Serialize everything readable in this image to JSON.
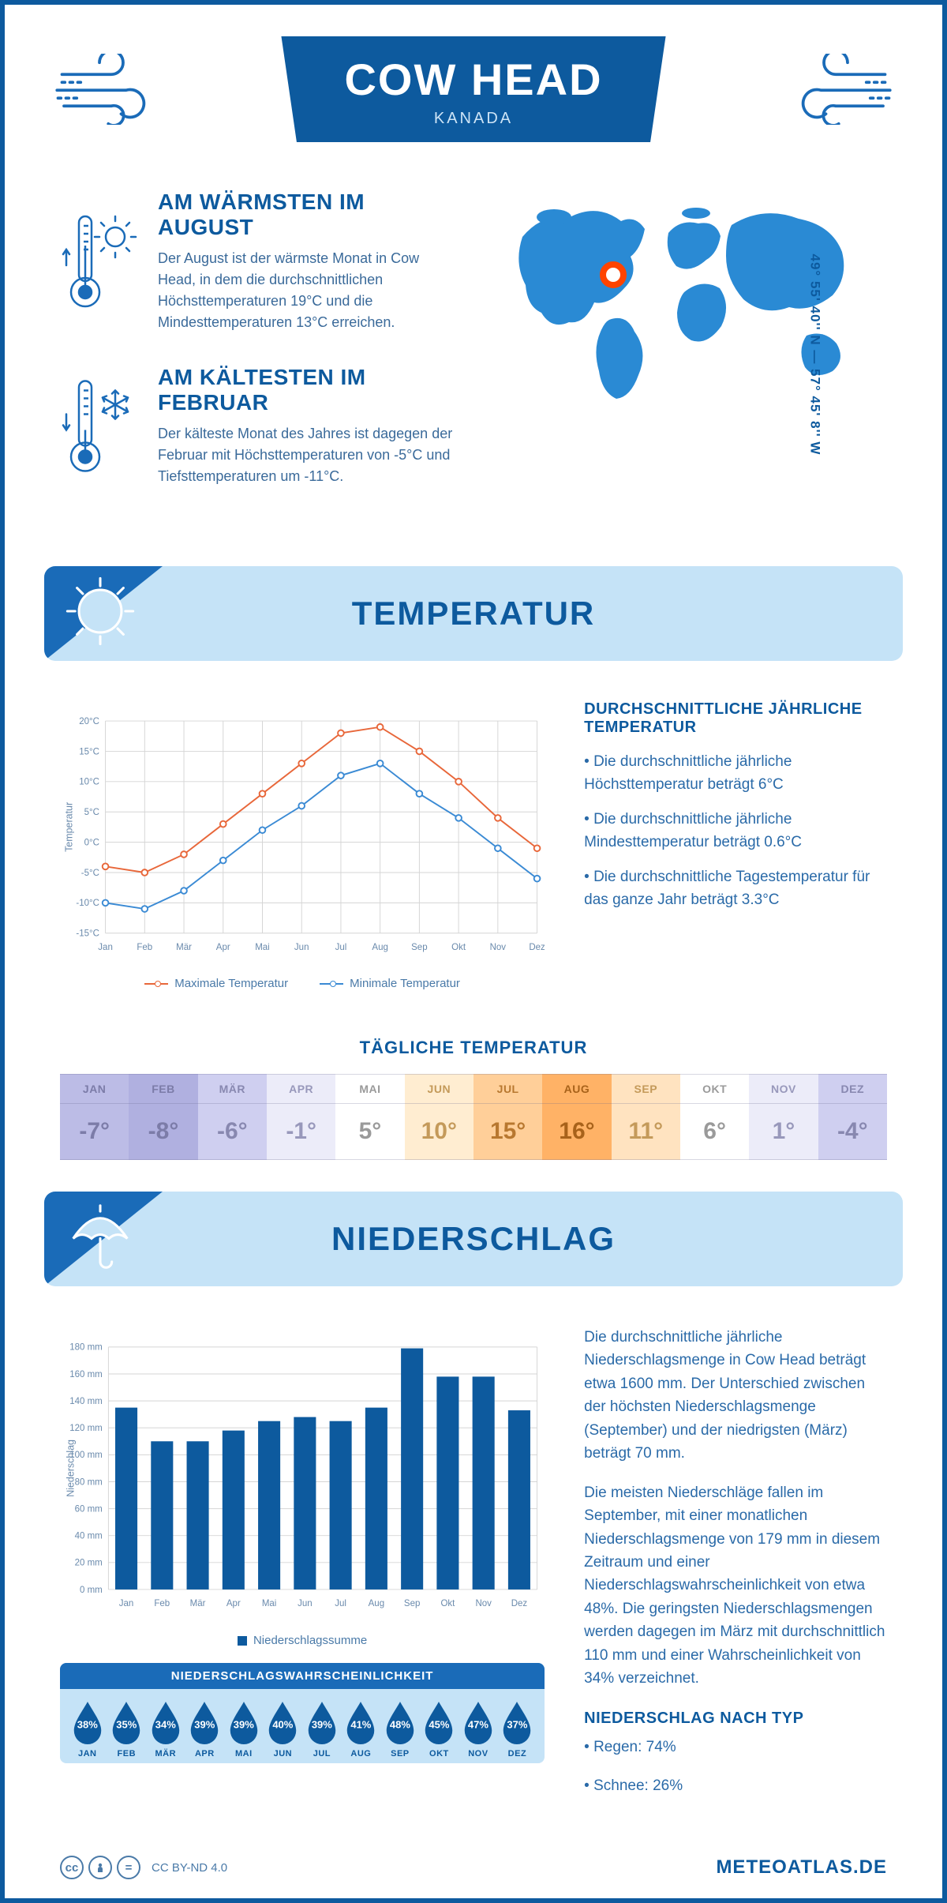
{
  "header": {
    "title": "COW HEAD",
    "subtitle": "KANADA"
  },
  "coords": "49° 55' 40'' N — 57° 45' 8'' W",
  "facts": {
    "warm": {
      "title": "AM WÄRMSTEN IM AUGUST",
      "text": "Der August ist der wärmste Monat in Cow Head, in dem die durchschnittlichen Höchsttemperaturen 19°C und die Mindesttemperaturen 13°C erreichen."
    },
    "cold": {
      "title": "AM KÄLTESTEN IM FEBRUAR",
      "text": "Der kälteste Monat des Jahres ist dagegen der Februar mit Höchsttemperaturen von -5°C und Tiefsttemperaturen um -11°C."
    }
  },
  "sections": {
    "temperature": "TEMPERATUR",
    "precipitation": "NIEDERSCHLAG"
  },
  "temp_chart": {
    "type": "line",
    "months": [
      "Jan",
      "Feb",
      "Mär",
      "Apr",
      "Mai",
      "Jun",
      "Jul",
      "Aug",
      "Sep",
      "Okt",
      "Nov",
      "Dez"
    ],
    "max_series": {
      "label": "Maximale Temperatur",
      "color": "#e8673a",
      "values": [
        -4,
        -5,
        -2,
        3,
        8,
        13,
        18,
        19,
        15,
        10,
        4,
        -1
      ]
    },
    "min_series": {
      "label": "Minimale Temperatur",
      "color": "#3a8ad4",
      "values": [
        -10,
        -11,
        -8,
        -3,
        2,
        6,
        11,
        13,
        8,
        4,
        -1,
        -6
      ]
    },
    "ylim": [
      -15,
      20
    ],
    "ytick_step": 5,
    "y_unit": "°C",
    "y_axis_label": "Temperatur",
    "grid_color": "#d5d5d5",
    "background": "#ffffff",
    "marker": "circle-open",
    "line_width": 2
  },
  "temp_facts": {
    "heading": "DURCHSCHNITTLICHE JÄHRLICHE TEMPERATUR",
    "bullets": [
      "• Die durchschnittliche jährliche Höchsttemperatur beträgt 6°C",
      "• Die durchschnittliche jährliche Mindesttemperatur beträgt 0.6°C",
      "• Die durchschnittliche Tagestemperatur für das ganze Jahr beträgt 3.3°C"
    ]
  },
  "daily_temp": {
    "title": "TÄGLICHE TEMPERATUR",
    "months": [
      "JAN",
      "FEB",
      "MÄR",
      "APR",
      "MAI",
      "JUN",
      "JUL",
      "AUG",
      "SEP",
      "OKT",
      "NOV",
      "DEZ"
    ],
    "values": [
      "-7°",
      "-8°",
      "-6°",
      "-1°",
      "5°",
      "10°",
      "15°",
      "16°",
      "11°",
      "6°",
      "1°",
      "-4°"
    ],
    "cell_colors": [
      "#bcbce6",
      "#b0b0e0",
      "#cfcff0",
      "#ececf9",
      "#ffffff",
      "#ffedd1",
      "#ffcf99",
      "#ffb266",
      "#ffe3c0",
      "#ffffff",
      "#ececf9",
      "#cfcff0"
    ],
    "text_colors": [
      "#7c7ca8",
      "#7c7ca8",
      "#8888b0",
      "#9898bb",
      "#9a9a9a",
      "#c49a5a",
      "#b87830",
      "#a8621a",
      "#c49a5a",
      "#9a9a9a",
      "#9898bb",
      "#8888b0"
    ]
  },
  "precip_chart": {
    "type": "bar",
    "months": [
      "Jan",
      "Feb",
      "Mär",
      "Apr",
      "Mai",
      "Jun",
      "Jul",
      "Aug",
      "Sep",
      "Okt",
      "Nov",
      "Dez"
    ],
    "values": [
      135,
      110,
      110,
      118,
      125,
      128,
      125,
      135,
      179,
      158,
      158,
      133
    ],
    "bar_color": "#0d5a9e",
    "ylim": [
      0,
      180
    ],
    "ytick_step": 20,
    "y_unit": " mm",
    "y_axis_label": "Niederschlag",
    "grid_color": "#d5d5d5",
    "legend": "Niederschlagssumme",
    "bar_width": 0.62
  },
  "precip_prob": {
    "title": "NIEDERSCHLAGSWAHRSCHEINLICHKEIT",
    "months": [
      "JAN",
      "FEB",
      "MÄR",
      "APR",
      "MAI",
      "JUN",
      "JUL",
      "AUG",
      "SEP",
      "OKT",
      "NOV",
      "DEZ"
    ],
    "values": [
      "38%",
      "35%",
      "34%",
      "39%",
      "39%",
      "40%",
      "39%",
      "41%",
      "48%",
      "45%",
      "47%",
      "37%"
    ],
    "drop_color": "#0d5a9e",
    "box_bg": "#c5e3f7"
  },
  "precip_text": {
    "p1": "Die durchschnittliche jährliche Niederschlagsmenge in Cow Head beträgt etwa 1600 mm. Der Unterschied zwischen der höchsten Niederschlagsmenge (September) und der niedrigsten (März) beträgt 70 mm.",
    "p2": "Die meisten Niederschläge fallen im September, mit einer monatlichen Niederschlagsmenge von 179 mm in diesem Zeitraum und einer Niederschlagswahrscheinlichkeit von etwa 48%. Die geringsten Niederschlagsmengen werden dagegen im März mit durchschnittlich 110 mm und einer Wahrscheinlichkeit von 34% verzeichnet.",
    "type_heading": "NIEDERSCHLAG NACH TYP",
    "type_bullets": [
      "• Regen: 74%",
      "• Schnee: 26%"
    ]
  },
  "footer": {
    "license": "CC BY-ND 4.0",
    "site": "METEOATLAS.DE"
  }
}
